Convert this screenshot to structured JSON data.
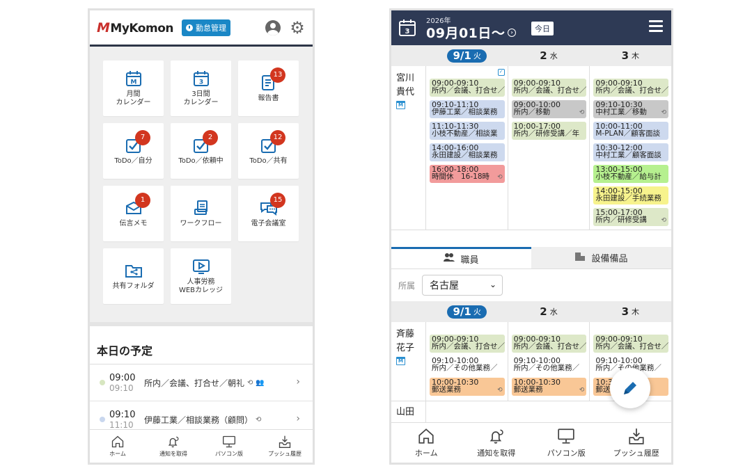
{
  "left": {
    "logo_text": "MyKomon",
    "logo_mark": "M",
    "kintai_label": "勤怠管理",
    "tiles": [
      {
        "label": "月間\nカレンダー",
        "icon": "calendar-month-icon",
        "glyph": "M",
        "badge": ""
      },
      {
        "label": "3日間\nカレンダー",
        "icon": "calendar-3day-icon",
        "glyph": "3",
        "badge": ""
      },
      {
        "label": "報告書",
        "icon": "report-icon",
        "glyph": "",
        "badge": "13"
      },
      {
        "label": "ToDo／自分",
        "icon": "todo-self-icon",
        "glyph": "",
        "badge": "7"
      },
      {
        "label": "ToDo／依頼中",
        "icon": "todo-request-icon",
        "glyph": "",
        "badge": "2"
      },
      {
        "label": "ToDo／共有",
        "icon": "todo-shared-icon",
        "glyph": "",
        "badge": "12"
      },
      {
        "label": "伝言メモ",
        "icon": "memo-icon",
        "glyph": "",
        "badge": "1"
      },
      {
        "label": "ワークフロー",
        "icon": "workflow-icon",
        "glyph": "",
        "badge": ""
      },
      {
        "label": "電子会議室",
        "icon": "meeting-room-icon",
        "glyph": "",
        "badge": "15"
      },
      {
        "label": "共有フォルダ",
        "icon": "shared-folder-icon",
        "glyph": "",
        "badge": ""
      },
      {
        "label": "人事労務\nWEBカレッジ",
        "icon": "web-college-icon",
        "glyph": "",
        "badge": ""
      }
    ],
    "schedule_title": "本日の予定",
    "schedule": [
      {
        "start": "09:00",
        "end": "09:10",
        "text": "所内／会議、打合せ／朝礼",
        "dot_color": "#d7e6c0"
      },
      {
        "start": "09:10",
        "end": "11:10",
        "text": "伊藤工業／相談業務（顧問）",
        "dot_color": "#c9d7ee"
      }
    ],
    "footer": [
      {
        "label": "ホーム",
        "icon": "home-icon"
      },
      {
        "label": "通知を取得",
        "icon": "bell-refresh-icon"
      },
      {
        "label": "パソコン版",
        "icon": "monitor-icon"
      },
      {
        "label": "プッシュ履歴",
        "icon": "push-history-icon"
      }
    ]
  },
  "right": {
    "year": "2026年",
    "date": "09月01日〜",
    "today_label": "今日",
    "days": [
      {
        "num": "9/1",
        "wd": "火",
        "active": true
      },
      {
        "num": "2",
        "wd": "水",
        "active": false
      },
      {
        "num": "3",
        "wd": "木",
        "active": false
      }
    ],
    "user1": {
      "name_line1": "宮川",
      "name_line2": "貴代",
      "cols": [
        [
          {
            "t": "09:00-09:10",
            "d": "所内／会議、打合せ／",
            "c": "#dde8c8"
          },
          {
            "t": "09:10-11:10",
            "d": "伊藤工業／相談業務",
            "c": "#cdd9ee"
          },
          {
            "t": "11:10-11:30",
            "d": "小枝不動産／相談業",
            "c": "#cdd9ee"
          },
          {
            "t": "14:00-16:00",
            "d": "永田建設／相談業務",
            "c": "#cdd9ee"
          },
          {
            "t": "16:00-18:00",
            "d": "時間休　16-18時",
            "c": "#f29b9b",
            "rep": true
          }
        ],
        [
          {
            "t": "09:00-09:10",
            "d": "所内／会議、打合せ／",
            "c": "#dde8c8"
          },
          {
            "t": "09:00-10:00",
            "d": "所内／移動",
            "c": "#c8c8c8",
            "rep": true
          },
          {
            "t": "10:00-17:00",
            "d": "所内／研修受講／年",
            "c": "#dde8c8"
          }
        ],
        [
          {
            "t": "09:00-09:10",
            "d": "所内／会議、打合せ／",
            "c": "#dde8c8"
          },
          {
            "t": "09:10-10:30",
            "d": "中村工業／移動",
            "c": "#c8c8c8",
            "rep": true
          },
          {
            "t": "10:00-11:00",
            "d": "M-PLAN／顧客面談",
            "c": "#cdd9ee"
          },
          {
            "t": "10:30-12:00",
            "d": "中村工業／顧客面談",
            "c": "#cdd9ee"
          },
          {
            "t": "13:00-15:00",
            "d": "小枝不動産／給与計",
            "c": "#b6f08f"
          },
          {
            "t": "14:00-15:00",
            "d": "永田建設／手続業務",
            "c": "#f7f38d"
          },
          {
            "t": "15:00-17:00",
            "d": "所内／研修受講",
            "c": "#dde8c8",
            "rep": true
          }
        ]
      ]
    },
    "tabs": [
      {
        "label": "職員",
        "icon": "people-icon",
        "active": true
      },
      {
        "label": "設備備品",
        "icon": "equipment-icon",
        "active": false
      }
    ],
    "filter_label": "所属",
    "filter_value": "名古屋",
    "user2": {
      "name_line1": "斉藤",
      "name_line2": "花子",
      "cols": [
        [
          {
            "t": "09:00-09:10",
            "d": "所内／会議、打合せ／",
            "c": "#dde8c8"
          },
          {
            "t": "09:10-10:00",
            "d": "所内／その他業務／",
            "c": "#ffffff"
          },
          {
            "t": "10:00-10:30",
            "d": "郵送業務",
            "c": "#f9c796",
            "rep": true
          }
        ],
        [
          {
            "t": "09:00-09:10",
            "d": "所内／会議、打合せ／",
            "c": "#dde8c8"
          },
          {
            "t": "09:10-10:00",
            "d": "所内／その他業務／",
            "c": "#ffffff"
          },
          {
            "t": "10:00-10:30",
            "d": "郵送業務",
            "c": "#f9c796",
            "rep": true
          }
        ],
        [
          {
            "t": "09:00-09:10",
            "d": "所内／会議、打合せ／",
            "c": "#dde8c8"
          },
          {
            "t": "09:10-10:00",
            "d": "所内／その他業務／",
            "c": "#ffffff"
          },
          {
            "t": "10:30",
            "d": "郵送",
            "c": "#f9c796"
          }
        ]
      ]
    },
    "user3_name": "山田",
    "footer": [
      {
        "label": "ホーム",
        "icon": "home-icon"
      },
      {
        "label": "通知を取得",
        "icon": "bell-refresh-icon"
      },
      {
        "label": "パソコン版",
        "icon": "monitor-icon"
      },
      {
        "label": "プッシュ履歴",
        "icon": "push-history-icon"
      }
    ]
  }
}
